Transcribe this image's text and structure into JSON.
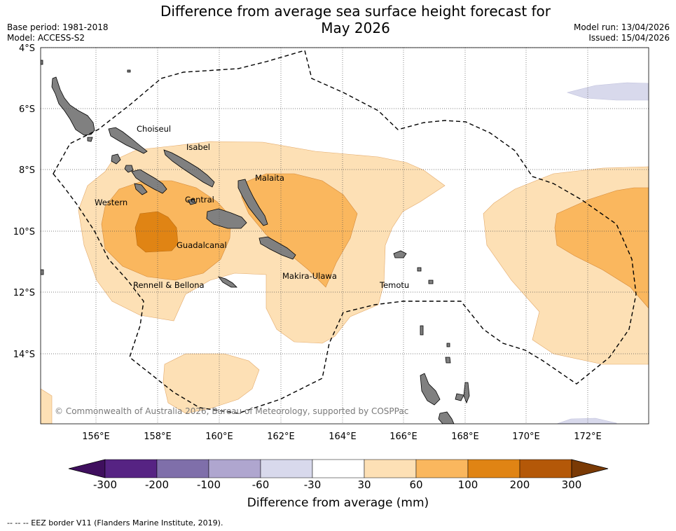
{
  "title": {
    "line1": "Difference from average sea surface height forecast for",
    "line2": "May 2026"
  },
  "meta": {
    "base_period": "Base period: 1981-2018",
    "model": "Model: ACCESS-S2",
    "model_run": "Model run: 13/04/2026",
    "issued": "Issued: 15/04/2026"
  },
  "axes": {
    "lat_labels": [
      "4°S",
      "6°S",
      "8°S",
      "10°S",
      "12°S",
      "14°S"
    ],
    "lon_labels": [
      "156°E",
      "158°E",
      "160°E",
      "162°E",
      "164°E",
      "166°E",
      "168°E",
      "170°E",
      "172°E"
    ]
  },
  "regions": [
    {
      "name": "Choiseul"
    },
    {
      "name": "Isabel"
    },
    {
      "name": "Malaita"
    },
    {
      "name": "Western"
    },
    {
      "name": "Central"
    },
    {
      "name": "Guadalcanal"
    },
    {
      "name": "Rennell & Bellona"
    },
    {
      "name": "Makira-Ulawa"
    },
    {
      "name": "Temotu"
    }
  ],
  "colorbar": {
    "ticks": [
      "-300",
      "-200",
      "-100",
      "-60",
      "-30",
      "30",
      "60",
      "100",
      "200",
      "300"
    ],
    "colors": [
      "#3f0f5e",
      "#562383",
      "#7f6faa",
      "#afa6cf",
      "#d8d9ec",
      "#ffffff",
      "#fde0b5",
      "#fab75e",
      "#e08414",
      "#b45808",
      "#7a3a05"
    ],
    "label": "Difference from average (mm)"
  },
  "copyright": "© Commonwealth of Australia 2026, Bureau of Meteorology, supported by COSPPac",
  "footnote": "--  --  -- EEZ border V11 (Flanders Marine Institute, 2019).",
  "colors": {
    "land": "#808080",
    "eez": "#000000",
    "grid": "#555555"
  }
}
